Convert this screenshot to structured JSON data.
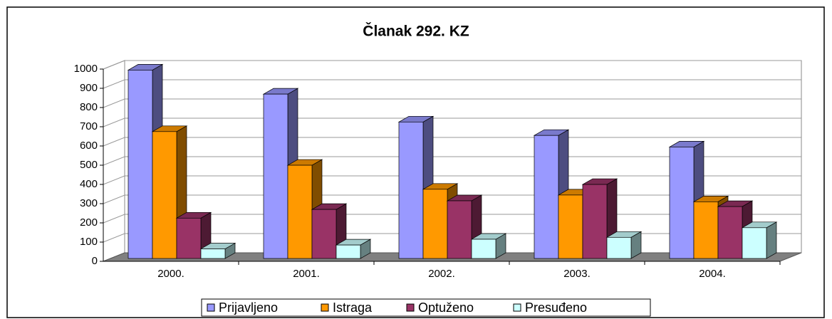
{
  "chart_data": {
    "type": "bar3d",
    "title": "Članak 292. KZ",
    "categories": [
      "2000.",
      "2001.",
      "2002.",
      "2003.",
      "2004."
    ],
    "series": [
      {
        "name": "Prijavljeno",
        "color": "#9999ff",
        "values": [
          980,
          855,
          710,
          640,
          580
        ]
      },
      {
        "name": "Istraga",
        "color": "#ff9900",
        "values": [
          660,
          485,
          360,
          330,
          295
        ]
      },
      {
        "name": "Optuženo",
        "color": "#993366",
        "values": [
          210,
          255,
          300,
          385,
          270
        ]
      },
      {
        "name": "Presuđeno",
        "color": "#ccffff",
        "values": [
          50,
          70,
          100,
          110,
          160
        ]
      }
    ],
    "ylim": [
      0,
      1000
    ],
    "yticks": [
      0,
      100,
      200,
      300,
      400,
      500,
      600,
      700,
      800,
      900,
      1000
    ],
    "grid": true,
    "legend": "bottom"
  }
}
